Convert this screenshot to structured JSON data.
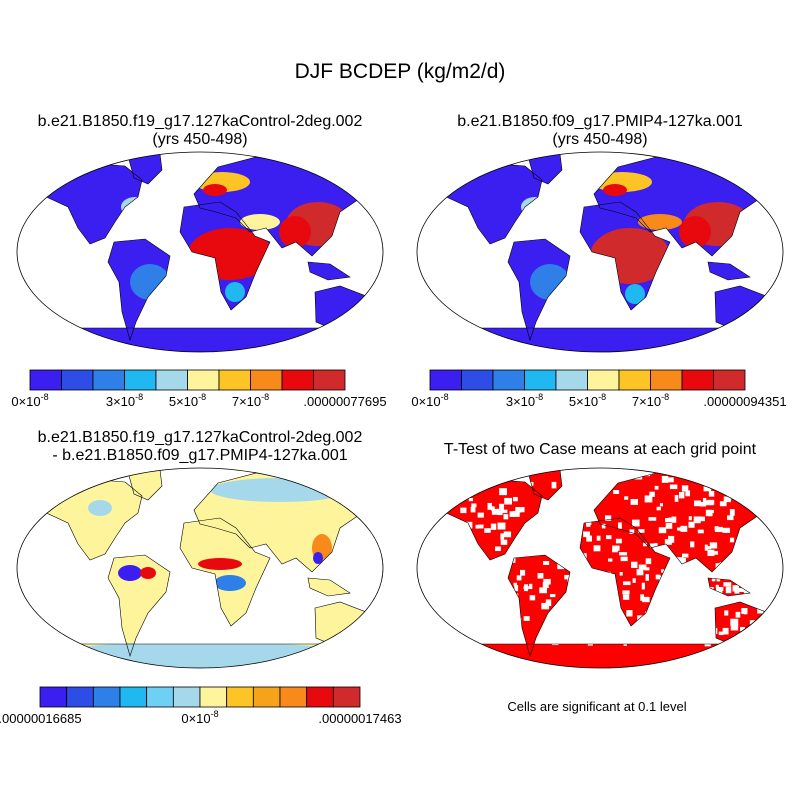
{
  "title": "DJF BCDEP (kg/m2/d)",
  "panels": [
    {
      "title_lines": [
        "b.e21.B1850.f19_g17.127kaControl-2deg.002",
        "(yrs 450-498)"
      ],
      "colorbar": {
        "colors": [
          "#3a1ff0",
          "#2d4de6",
          "#2e7fe8",
          "#1fb8f0",
          "#a6d8ec",
          "#fdf49c",
          "#fdc425",
          "#f78a1b",
          "#e8090f",
          "#d02a2d"
        ],
        "labels": [
          {
            "boundary": 0,
            "text": "0×10",
            "sup": "-8"
          },
          {
            "boundary": 3,
            "text": "3×10",
            "sup": "-8"
          },
          {
            "boundary": 5,
            "text": "5×10",
            "sup": "-8"
          },
          {
            "boundary": 7,
            "text": "7×10",
            "sup": "-8"
          },
          {
            "boundary": 10,
            "text": ".00000077695"
          }
        ]
      }
    },
    {
      "title_lines": [
        "b.e21.B1850.f09_g17.PMIP4-127ka.001",
        "(yrs 450-498)"
      ],
      "colorbar": {
        "colors": [
          "#3a1ff0",
          "#2d4de6",
          "#2e7fe8",
          "#1fb8f0",
          "#a6d8ec",
          "#fdf49c",
          "#fdc425",
          "#f78a1b",
          "#e8090f",
          "#d02a2d"
        ],
        "labels": [
          {
            "boundary": 0,
            "text": "0×10",
            "sup": "-8"
          },
          {
            "boundary": 3,
            "text": "3×10",
            "sup": "-8"
          },
          {
            "boundary": 5,
            "text": "5×10",
            "sup": "-8"
          },
          {
            "boundary": 7,
            "text": "7×10",
            "sup": "-8"
          },
          {
            "boundary": 10,
            "text": ".00000094351"
          }
        ]
      }
    },
    {
      "title_lines": [
        "b.e21.B1850.f19_g17.127kaControl-2deg.002",
        "- b.e21.B1850.f09_g17.PMIP4-127ka.001"
      ],
      "colorbar": {
        "colors": [
          "#3a1ff0",
          "#2d4de6",
          "#2e7fe8",
          "#1fb8f0",
          "#6fd0f5",
          "#a6d8ec",
          "#fdf49c",
          "#fdc425",
          "#f7a21b",
          "#f78a1b",
          "#e8090f",
          "#d02a2d"
        ],
        "labels": [
          {
            "boundary": 0,
            "text": ".00000016685"
          },
          {
            "boundary": 6,
            "text": "0×10",
            "sup": "-8"
          },
          {
            "boundary": 12,
            "text": ".00000017463"
          }
        ]
      }
    },
    {
      "title_lines": [
        "T-Test of two Case means at each grid point"
      ],
      "note": "Cells are significant at 0.1 level"
    }
  ]
}
